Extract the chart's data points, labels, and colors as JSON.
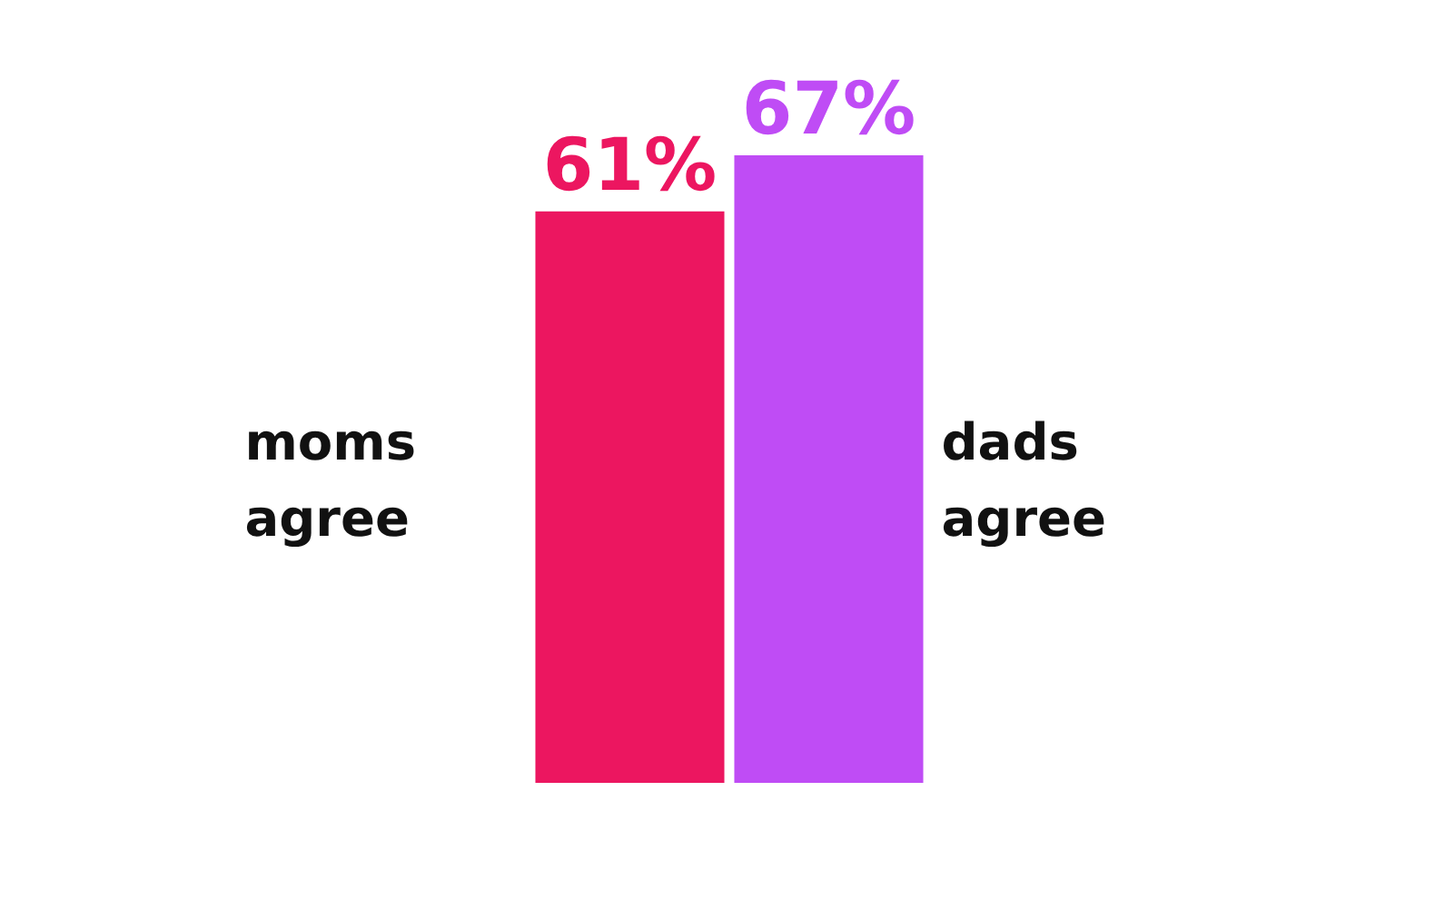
{
  "chart_data": {
    "type": "bar",
    "categories": [
      "moms agree",
      "dads agree"
    ],
    "values": [
      61,
      67
    ],
    "colors": [
      "#ec1660",
      "#bf4cf5"
    ],
    "value_labels": [
      "61%",
      "67%"
    ],
    "legend": false
  }
}
